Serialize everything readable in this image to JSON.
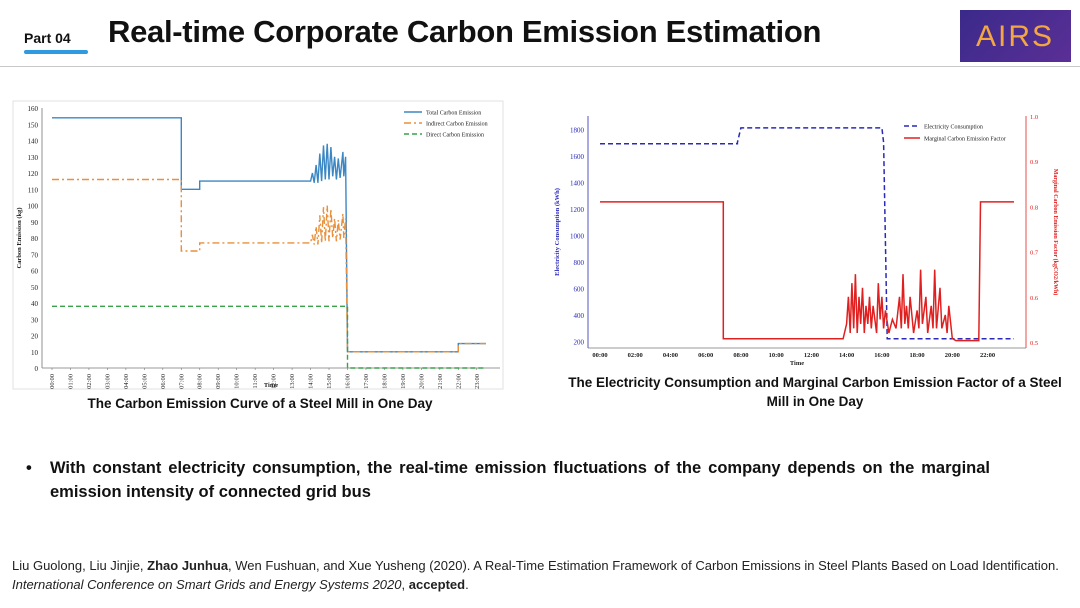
{
  "header": {
    "part_label": "Part 04",
    "title": "Real-time Corporate Carbon Emission Estimation",
    "logo_text": "AIRS",
    "accent_color": "#2f9ae0"
  },
  "chart_data": [
    {
      "type": "line",
      "title": "The Carbon Emission Curve of a Steel Mill in One Day",
      "xlabel": "Time",
      "ylabel": "Carbon Emission (kg)",
      "ylim": [
        0,
        160
      ],
      "yticks": [
        0,
        10,
        20,
        30,
        40,
        50,
        60,
        70,
        80,
        90,
        100,
        110,
        120,
        130,
        140,
        150,
        160
      ],
      "categories": [
        "00:00",
        "01:00",
        "02:00",
        "03:00",
        "04:00",
        "05:00",
        "06:00",
        "07:00",
        "08:00",
        "09:00",
        "10:00",
        "11:00",
        "12:00",
        "13:00",
        "14:00",
        "15:00",
        "16:00",
        "17:00",
        "18:00",
        "19:00",
        "20:00",
        "21:00",
        "22:00",
        "23:00"
      ],
      "series": [
        {
          "name": "Total Carbon Emission",
          "color": "#3b87c4",
          "style": "solid",
          "points": [
            [
              0,
              154
            ],
            [
              7,
              154
            ],
            [
              7,
              110
            ],
            [
              8,
              110
            ],
            [
              8,
              115
            ],
            [
              14,
              115
            ],
            [
              14.1,
              120
            ],
            [
              14.2,
              114
            ],
            [
              14.3,
              125
            ],
            [
              14.4,
              114
            ],
            [
              14.5,
              132
            ],
            [
              14.6,
              115
            ],
            [
              14.7,
              137
            ],
            [
              14.8,
              116
            ],
            [
              14.9,
              138
            ],
            [
              15.0,
              116
            ],
            [
              15.1,
              136
            ],
            [
              15.2,
              118
            ],
            [
              15.3,
              130
            ],
            [
              15.4,
              116
            ],
            [
              15.5,
              129
            ],
            [
              15.6,
              117
            ],
            [
              15.75,
              133
            ],
            [
              15.8,
              118
            ],
            [
              15.9,
              130
            ],
            [
              16,
              10
            ],
            [
              22,
              10
            ],
            [
              22,
              15
            ],
            [
              23.5,
              15
            ]
          ]
        },
        {
          "name": "Indirect Carbon Emission",
          "color": "#e8903c",
          "style": "dashdot",
          "points": [
            [
              0,
              116
            ],
            [
              7,
              116
            ],
            [
              7,
              72
            ],
            [
              8,
              72
            ],
            [
              8,
              77
            ],
            [
              14,
              77
            ],
            [
              14.1,
              82
            ],
            [
              14.2,
              76
            ],
            [
              14.3,
              87
            ],
            [
              14.4,
              76
            ],
            [
              14.5,
              94
            ],
            [
              14.6,
              77
            ],
            [
              14.7,
              99
            ],
            [
              14.8,
              78
            ],
            [
              14.9,
              100
            ],
            [
              15.0,
              78
            ],
            [
              15.1,
              98
            ],
            [
              15.2,
              80
            ],
            [
              15.3,
              92
            ],
            [
              15.4,
              78
            ],
            [
              15.5,
              91
            ],
            [
              15.6,
              79
            ],
            [
              15.75,
              95
            ],
            [
              15.8,
              80
            ],
            [
              15.9,
              92
            ],
            [
              16,
              10
            ],
            [
              22,
              10
            ],
            [
              22,
              15
            ],
            [
              23.5,
              15
            ]
          ]
        },
        {
          "name": "Direct Carbon Emission",
          "color": "#3aa04a",
          "style": "dashed",
          "points": [
            [
              0,
              38
            ],
            [
              16,
              38
            ],
            [
              16,
              0
            ],
            [
              23.5,
              0
            ]
          ]
        }
      ]
    },
    {
      "type": "line",
      "title": "The Electricity Consumption and Marginal Carbon Emission Factor of a Steel Mill in One Day",
      "xlabel": "Time",
      "ylabel": "Electricity Consumption (kWh)",
      "ylabel_right": "Marginal Carbon Emission Factor (kgCO2/kWh)",
      "ylim": [
        150,
        1900
      ],
      "ylim_right": [
        0.5,
        1.0
      ],
      "yticks": [
        200,
        400,
        600,
        800,
        1000,
        1200,
        1400,
        1600,
        1800
      ],
      "yticks_right": [
        "0.5",
        "0.6",
        "0.7",
        "0.8",
        "0.9",
        "1.0"
      ],
      "categories": [
        "00:00",
        "02:00",
        "04:00",
        "06:00",
        "08:00",
        "10:00",
        "12:00",
        "14:00",
        "16:00",
        "18:00",
        "20:00",
        "22:00"
      ],
      "series": [
        {
          "name": "Electricity Consumption",
          "color": "#2a2ab8",
          "style": "dashed",
          "axis": "left",
          "points": [
            [
              0,
              1690
            ],
            [
              7.8,
              1690
            ],
            [
              7.8,
              1700
            ],
            [
              8,
              1810
            ],
            [
              16,
              1810
            ],
            [
              16.1,
              1700
            ],
            [
              16.3,
              220
            ],
            [
              23.5,
              220
            ]
          ]
        },
        {
          "name": "Marginal Carbon Emission Factor",
          "color": "#e02020",
          "style": "solid",
          "axis": "right",
          "points": [
            [
              0,
              0.81
            ],
            [
              7,
              0.81
            ],
            [
              7,
              0.507
            ],
            [
              13.8,
              0.507
            ],
            [
              14,
              0.54
            ],
            [
              14.1,
              0.6
            ],
            [
              14.2,
              0.52
            ],
            [
              14.3,
              0.63
            ],
            [
              14.4,
              0.53
            ],
            [
              14.5,
              0.65
            ],
            [
              14.6,
              0.52
            ],
            [
              14.7,
              0.6
            ],
            [
              14.8,
              0.54
            ],
            [
              14.9,
              0.62
            ],
            [
              15.0,
              0.52
            ],
            [
              15.1,
              0.58
            ],
            [
              15.2,
              0.54
            ],
            [
              15.3,
              0.6
            ],
            [
              15.4,
              0.53
            ],
            [
              15.5,
              0.58
            ],
            [
              15.7,
              0.52
            ],
            [
              15.8,
              0.63
            ],
            [
              15.9,
              0.55
            ],
            [
              16.0,
              0.6
            ],
            [
              16.1,
              0.53
            ],
            [
              16.2,
              0.57
            ],
            [
              16.4,
              0.52
            ],
            [
              16.6,
              0.55
            ],
            [
              16.8,
              0.53
            ],
            [
              17,
              0.6
            ],
            [
              17.1,
              0.53
            ],
            [
              17.2,
              0.65
            ],
            [
              17.3,
              0.54
            ],
            [
              17.4,
              0.58
            ],
            [
              17.5,
              0.53
            ],
            [
              17.6,
              0.6
            ],
            [
              17.8,
              0.52
            ],
            [
              18,
              0.57
            ],
            [
              18.1,
              0.53
            ],
            [
              18.2,
              0.66
            ],
            [
              18.3,
              0.54
            ],
            [
              18.5,
              0.6
            ],
            [
              18.6,
              0.52
            ],
            [
              18.8,
              0.58
            ],
            [
              18.9,
              0.53
            ],
            [
              19.0,
              0.66
            ],
            [
              19.1,
              0.53
            ],
            [
              19.3,
              0.62
            ],
            [
              19.4,
              0.53
            ],
            [
              19.6,
              0.56
            ],
            [
              19.7,
              0.52
            ],
            [
              19.8,
              0.58
            ],
            [
              20,
              0.508
            ],
            [
              20.2,
              0.503
            ],
            [
              21.5,
              0.503
            ],
            [
              21.6,
              0.81
            ],
            [
              23.5,
              0.81
            ]
          ]
        }
      ]
    }
  ],
  "bullet": {
    "symbol": "•",
    "text": "With constant electricity consumption, the real-time emission fluctuations of the company depends on the marginal emission intensity of connected grid bus"
  },
  "reference": {
    "authors_before": "Liu Guolong, Liu Jinjie, ",
    "author_bold": "Zhao Junhua",
    "authors_after": ", Wen Fushuan, and Xue Yusheng (2020). A Real-Time Estimation Framework of Carbon Emissions in Steel Plants Based on Load Identification. ",
    "venue": "International Conference on Smart Grids and Energy Systems 2020",
    "sep": ", ",
    "status": "accepted",
    "end": "."
  }
}
